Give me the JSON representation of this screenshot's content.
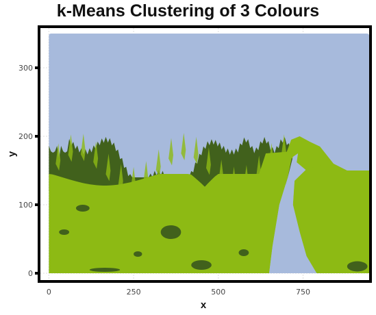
{
  "chart_data": {
    "type": "scatter",
    "title": "k-Means Clustering of 3 Colours",
    "xlabel": "x",
    "ylabel": "y",
    "xlim": [
      -25,
      945
    ],
    "ylim": [
      -10,
      358
    ],
    "x_ticks": [
      0,
      250,
      500,
      750
    ],
    "y_ticks": [
      0,
      100,
      200,
      300
    ],
    "grid": true,
    "legend": "none",
    "image_extent": {
      "x": [
        0,
        945
      ],
      "y": [
        0,
        350
      ]
    },
    "clusters": [
      {
        "color": "#a7badc"
      },
      {
        "color": "#8dba14"
      },
      {
        "color": "#41611c"
      }
    ]
  }
}
